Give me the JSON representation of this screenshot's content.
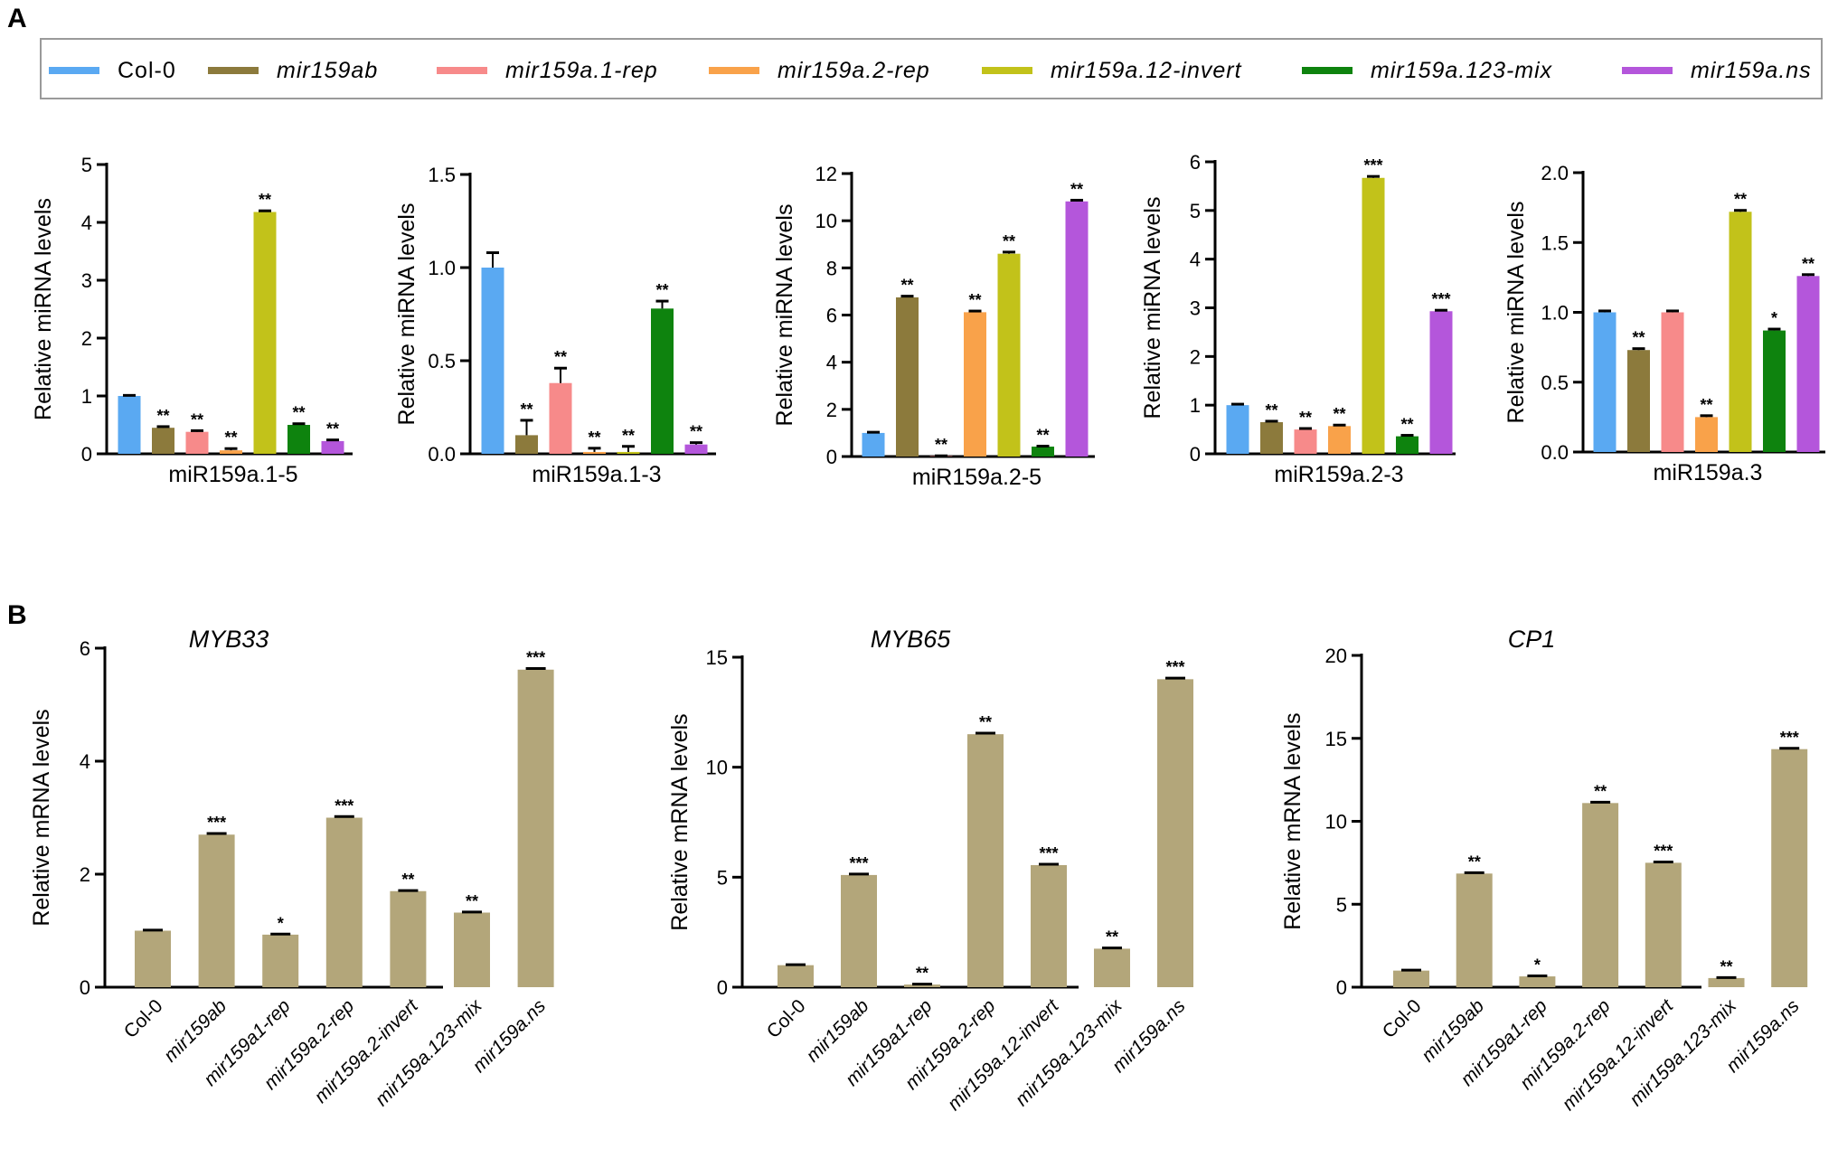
{
  "panels": {
    "a": "A",
    "b": "B"
  },
  "legend": [
    {
      "label": "Col-0",
      "color": "#5aa9f2",
      "italic": false
    },
    {
      "label": "mir159ab",
      "color": "#8c7a3c",
      "italic": true
    },
    {
      "label": "mir159a.1-rep",
      "color": "#f78a8a",
      "italic": true
    },
    {
      "label": "mir159a.2-rep",
      "color": "#f9a24a",
      "italic": true
    },
    {
      "label": "mir159a.12-invert",
      "color": "#c2c21a",
      "italic": true
    },
    {
      "label": "mir159a.123-mix",
      "color": "#0e830e",
      "italic": true
    },
    {
      "label": "mir159a.ns",
      "color": "#b456db",
      "italic": true
    }
  ],
  "chart_data": [
    {
      "panel": "A",
      "type": "bar",
      "title": "",
      "xlabel": "miR159a.1-5",
      "ylabel": "Relative miRNA levels",
      "ylim": [
        0,
        5
      ],
      "yticks": [
        0,
        1,
        2,
        3,
        4,
        5
      ],
      "ytick_labels": [
        "0",
        "1",
        "2",
        "3",
        "4",
        "5"
      ],
      "categories": [
        "Col-0",
        "mir159ab",
        "mir159a.1-rep",
        "mir159a.2-rep",
        "mir159a.12-invert",
        "mir159a.123-mix",
        "mir159a.ns"
      ],
      "values": [
        1.0,
        0.45,
        0.38,
        0.06,
        4.18,
        0.5,
        0.22
      ],
      "errors": [
        0.01,
        0.02,
        0.02,
        0.03,
        0.02,
        0.02,
        0.02
      ],
      "sig": [
        "",
        "**",
        "**",
        "**",
        "**",
        "**",
        "**"
      ]
    },
    {
      "panel": "A",
      "type": "bar",
      "title": "",
      "xlabel": "miR159a.1-3",
      "ylabel": "Relative miRNA levels",
      "ylim": [
        0,
        1.5
      ],
      "yticks": [
        0,
        0.5,
        1.0,
        1.5
      ],
      "ytick_labels": [
        "0.0",
        "0.5",
        "1.0",
        "1.5"
      ],
      "categories": [
        "Col-0",
        "mir159ab",
        "mir159a.1-rep",
        "mir159a.2-rep",
        "mir159a.12-invert",
        "mir159a.123-mix",
        "mir159a.ns"
      ],
      "values": [
        1.0,
        0.1,
        0.38,
        0.01,
        0.01,
        0.78,
        0.05
      ],
      "errors": [
        0.08,
        0.08,
        0.08,
        0.02,
        0.03,
        0.04,
        0.01
      ],
      "sig": [
        "",
        "**",
        "**",
        "**",
        "**",
        "**",
        "**"
      ]
    },
    {
      "panel": "A",
      "type": "bar",
      "title": "",
      "xlabel": "miR159a.2-5",
      "ylabel": "Relative miRNA levels",
      "ylim": [
        0,
        12
      ],
      "yticks": [
        0,
        2,
        4,
        6,
        8,
        10,
        12
      ],
      "ytick_labels": [
        "0",
        "2",
        "4",
        "6",
        "8",
        "10",
        "12"
      ],
      "categories": [
        "Col-0",
        "mir159ab",
        "mir159a.1-rep",
        "mir159a.2-rep",
        "mir159a.12-invert",
        "mir159a.123-mix",
        "mir159a.ns"
      ],
      "values": [
        1.0,
        6.75,
        0.02,
        6.12,
        8.6,
        0.42,
        10.82
      ],
      "errors": [
        0.03,
        0.05,
        0.01,
        0.05,
        0.07,
        0.02,
        0.05
      ],
      "sig": [
        "",
        "**",
        "**",
        "**",
        "**",
        "**",
        "**"
      ]
    },
    {
      "panel": "A",
      "type": "bar",
      "title": "",
      "xlabel": "miR159a.2-3",
      "ylabel": "Relative miRNA levels",
      "ylim": [
        0,
        6
      ],
      "yticks": [
        0,
        1,
        2,
        3,
        4,
        5,
        6
      ],
      "ytick_labels": [
        "0",
        "1",
        "2",
        "3",
        "4",
        "5",
        "6"
      ],
      "categories": [
        "Col-0",
        "mir159ab",
        "mir159a.1-rep",
        "mir159a.2-rep",
        "mir159a.12-invert",
        "mir159a.123-mix",
        "mir159a.ns"
      ],
      "values": [
        1.0,
        0.65,
        0.5,
        0.57,
        5.67,
        0.36,
        2.93
      ],
      "errors": [
        0.02,
        0.02,
        0.02,
        0.02,
        0.03,
        0.02,
        0.02
      ],
      "sig": [
        "",
        "**",
        "**",
        "**",
        "***",
        "**",
        "***"
      ]
    },
    {
      "panel": "A",
      "type": "bar",
      "title": "",
      "xlabel": "miR159a.3",
      "ylabel": "Relative miRNA levels",
      "ylim": [
        0,
        2.0
      ],
      "yticks": [
        0,
        0.5,
        1.0,
        1.5,
        2.0
      ],
      "ytick_labels": [
        "0.0",
        "0.5",
        "1.0",
        "1.5",
        "2.0"
      ],
      "categories": [
        "Col-0",
        "mir159ab",
        "mir159a.1-rep",
        "mir159a.2-rep",
        "mir159a.12-invert",
        "mir159a.123-mix",
        "mir159a.ns"
      ],
      "values": [
        1.0,
        0.73,
        1.0,
        0.25,
        1.72,
        0.87,
        1.26
      ],
      "errors": [
        0.01,
        0.01,
        0.01,
        0.01,
        0.01,
        0.01,
        0.01
      ],
      "sig": [
        "",
        "**",
        "",
        "**",
        "**",
        "*",
        "**"
      ]
    },
    {
      "panel": "B",
      "type": "bar",
      "title": "MYB33",
      "xlabel": "",
      "ylabel": "Relative mRNA levels",
      "ylim": [
        0,
        6
      ],
      "yticks": [
        0,
        2,
        4,
        6
      ],
      "ytick_labels": [
        "0",
        "2",
        "4",
        "6"
      ],
      "categories": [
        "Col-0",
        "mir159ab",
        "mir159a1-rep",
        "mir159a.2-rep",
        "mir159a.2-invert",
        "mir159a.123-mix",
        "mir159a.ns"
      ],
      "values": [
        1.0,
        2.7,
        0.93,
        3.0,
        1.7,
        1.32,
        5.62
      ],
      "errors": [
        0.01,
        0.02,
        0.01,
        0.02,
        0.01,
        0.01,
        0.02
      ],
      "sig": [
        "",
        "***",
        "*",
        "***",
        "**",
        "**",
        "***"
      ]
    },
    {
      "panel": "B",
      "type": "bar",
      "title": "MYB65",
      "xlabel": "",
      "ylabel": "Relative mRNA levels",
      "ylim": [
        0,
        15
      ],
      "yticks": [
        0,
        5,
        10,
        15
      ],
      "ytick_labels": [
        "0",
        "5",
        "10",
        "15"
      ],
      "categories": [
        "Col-0",
        "mir159ab",
        "mir159a1-rep",
        "mir159a.2-rep",
        "mir159a.12-invert",
        "mir159a.123-mix",
        "mir159a.ns"
      ],
      "values": [
        1.0,
        5.1,
        0.12,
        11.5,
        5.55,
        1.75,
        14.0
      ],
      "errors": [
        0.02,
        0.04,
        0.02,
        0.05,
        0.04,
        0.03,
        0.05
      ],
      "sig": [
        "",
        "***",
        "**",
        "**",
        "***",
        "**",
        "***"
      ]
    },
    {
      "panel": "B",
      "type": "bar",
      "title": "CP1",
      "xlabel": "",
      "ylabel": "Relative mRNA levels",
      "ylim": [
        0,
        20
      ],
      "yticks": [
        0,
        5,
        10,
        15,
        20
      ],
      "ytick_labels": [
        "0",
        "5",
        "10",
        "15",
        "20"
      ],
      "categories": [
        "Col-0",
        "mir159ab",
        "mir159a1-rep",
        "mir159a.2-rep",
        "mir159a.12-invert",
        "mir159a.123-mix",
        "mir159a.ns"
      ],
      "values": [
        1.0,
        6.85,
        0.65,
        11.1,
        7.5,
        0.55,
        14.35
      ],
      "errors": [
        0.03,
        0.05,
        0.03,
        0.05,
        0.05,
        0.03,
        0.05
      ],
      "sig": [
        "",
        "**",
        "*",
        "**",
        "***",
        "**",
        "***"
      ]
    }
  ],
  "colors": {
    "panel_b_bar": "#b3a67a"
  }
}
